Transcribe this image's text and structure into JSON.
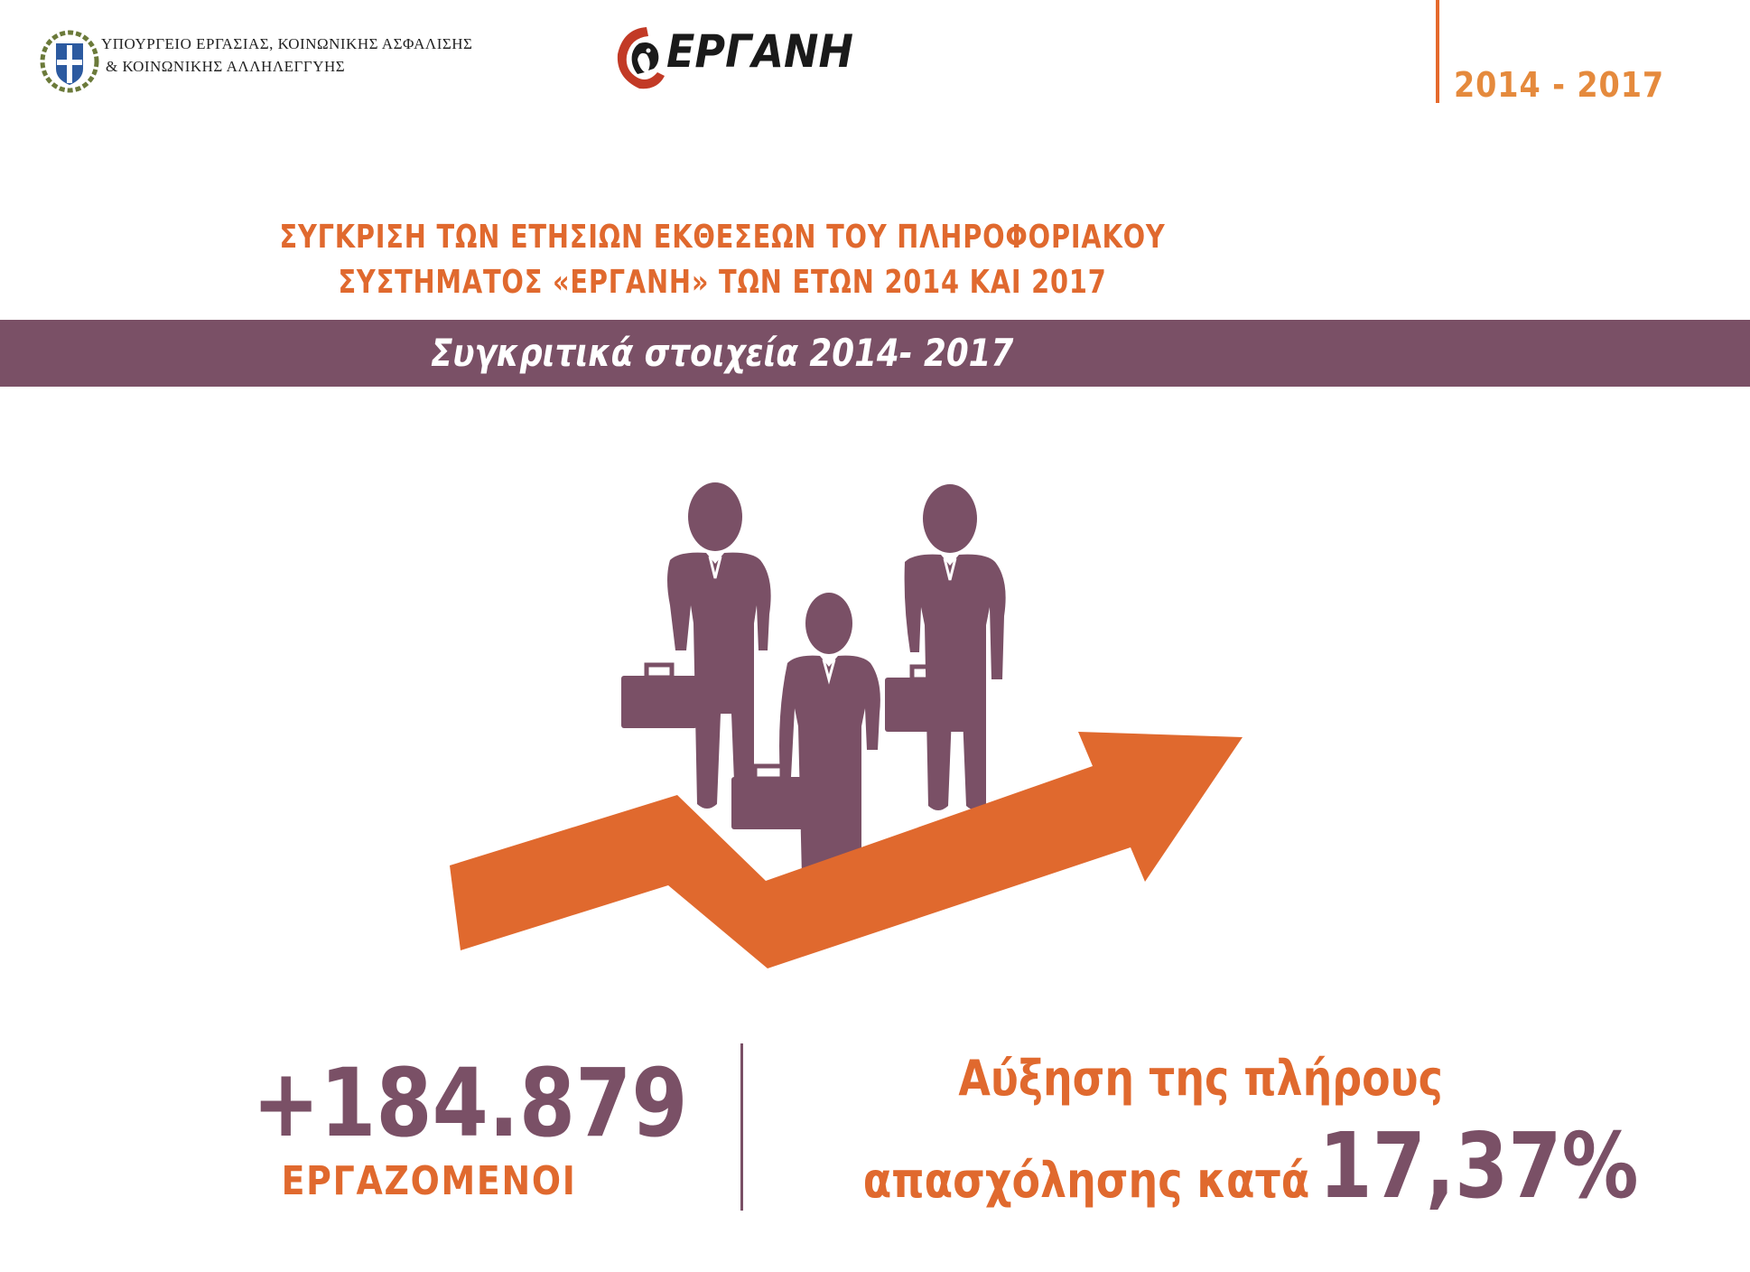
{
  "header": {
    "ministry_line1": "ΥΠΟΥΡΓΕΙΟ ΕΡΓΑΣΙΑΣ, ΚΟΙΝΩΝΙΚΗΣ ΑΣΦΑΛΙΣΗΣ",
    "ministry_line2": "& ΚΟΙΝΩΝΙΚΗΣ ΑΛΛΗΛΕΓΓΥΗΣ",
    "logo_text": "ΕΡΓΑΝΗ",
    "period": "2014 - 2017"
  },
  "title": {
    "line1": "ΣΥΓΚΡΙΣΗ ΤΩΝ ΕΤΗΣΙΩΝ ΕΚΘΕΣΕΩΝ ΤΟΥ ΠΛΗΡΟΦΟΡΙΑΚΟΥ",
    "line2": "ΣΥΣΤΗΜΑΤΟΣ «ΕΡΓΑΝΗ» ΤΩΝ ΕΤΩΝ 2014 ΚΑΙ 2017"
  },
  "banner": {
    "text": "Συγκριτικά στοιχεία 2014- 2017"
  },
  "stats": {
    "employees_value": "+184.879",
    "employees_label": "ΕΡΓΑΖΟΜΕΝΟΙ",
    "increase_line1": "Αύξηση της πλήρους",
    "increase_line2": "απασχόλησης κατά",
    "increase_value": "17,37%"
  },
  "colors": {
    "accent_orange": "#e0692e",
    "accent_purple": "#7a5066",
    "period_orange": "#e58a3d"
  },
  "icons": [
    "greek-emblem-icon",
    "ergani-logo-icon",
    "businessmen-icon",
    "growth-arrow-icon"
  ]
}
